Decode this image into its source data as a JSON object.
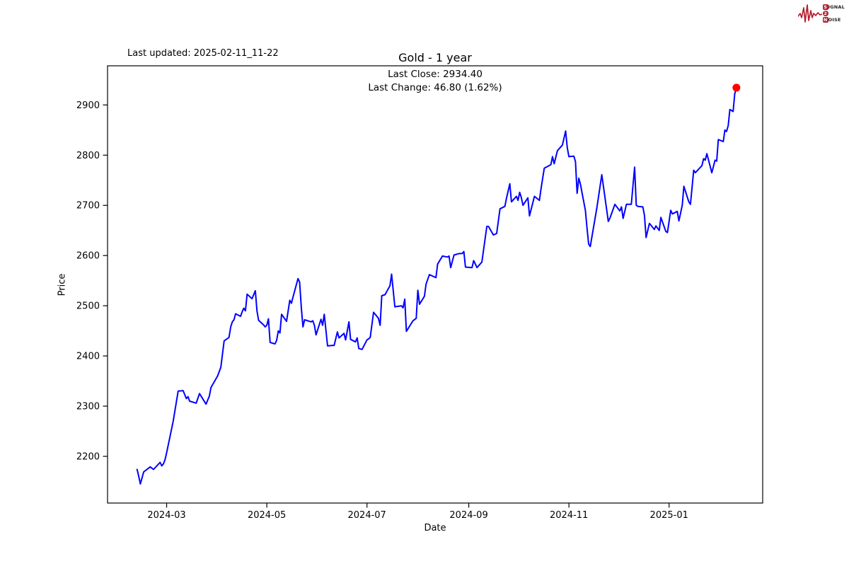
{
  "header": {
    "last_updated": "Last updated: 2025-02-11_11-22",
    "logo": {
      "color": "#b41f2e",
      "lines": [
        {
          "initial": "S",
          "rest": "IGNAL"
        },
        {
          "initial": "2",
          "rest": ""
        },
        {
          "initial": "N",
          "rest": "OISE"
        }
      ]
    }
  },
  "chart_data": {
    "type": "line",
    "title": "Gold - 1 year",
    "last_close_label": "Last Close: 2934.40",
    "last_change_label": "Last Change: 46.80 (1.62%)",
    "last_close": 2934.4,
    "last_change": 46.8,
    "last_change_pct": "1.62%",
    "xlabel": "Date",
    "ylabel": "Price",
    "line_color": "#0000ff",
    "marker_color": "#ff0000",
    "frame_color": "#000000",
    "grid": false,
    "ylim": [
      2107,
      2978
    ],
    "xlim": [
      "2024-01-25",
      "2025-02-27"
    ],
    "yticks": [
      2200,
      2300,
      2400,
      2500,
      2600,
      2700,
      2800,
      2900
    ],
    "xticks": [
      "2024-03",
      "2024-05",
      "2024-07",
      "2024-09",
      "2024-11",
      "2025-01"
    ],
    "series": [
      {
        "name": "Gold",
        "points": [
          [
            "2024-02-12",
            2174
          ],
          [
            "2024-02-13",
            2160
          ],
          [
            "2024-02-14",
            2145
          ],
          [
            "2024-02-16",
            2169
          ],
          [
            "2024-02-20",
            2179
          ],
          [
            "2024-02-22",
            2174
          ],
          [
            "2024-02-26",
            2188
          ],
          [
            "2024-02-27",
            2181
          ],
          [
            "2024-02-28",
            2185
          ],
          [
            "2024-02-29",
            2193
          ],
          [
            "2024-03-01",
            2207
          ],
          [
            "2024-03-05",
            2270
          ],
          [
            "2024-03-08",
            2330
          ],
          [
            "2024-03-11",
            2331
          ],
          [
            "2024-03-13",
            2315
          ],
          [
            "2024-03-14",
            2319
          ],
          [
            "2024-03-15",
            2310
          ],
          [
            "2024-03-19",
            2306
          ],
          [
            "2024-03-21",
            2325
          ],
          [
            "2024-03-25",
            2304
          ],
          [
            "2024-03-27",
            2320
          ],
          [
            "2024-03-28",
            2337
          ],
          [
            "2024-04-01",
            2360
          ],
          [
            "2024-04-03",
            2377
          ],
          [
            "2024-04-05",
            2430
          ],
          [
            "2024-04-08",
            2437
          ],
          [
            "2024-04-09",
            2458
          ],
          [
            "2024-04-10",
            2468
          ],
          [
            "2024-04-11",
            2472
          ],
          [
            "2024-04-12",
            2484
          ],
          [
            "2024-04-15",
            2479
          ],
          [
            "2024-04-16",
            2488
          ],
          [
            "2024-04-17",
            2495
          ],
          [
            "2024-04-18",
            2490
          ],
          [
            "2024-04-19",
            2523
          ],
          [
            "2024-04-22",
            2514
          ],
          [
            "2024-04-24",
            2530
          ],
          [
            "2024-04-25",
            2490
          ],
          [
            "2024-04-26",
            2471
          ],
          [
            "2024-04-29",
            2462
          ],
          [
            "2024-04-30",
            2458
          ],
          [
            "2024-05-01",
            2461
          ],
          [
            "2024-05-02",
            2474
          ],
          [
            "2024-05-03",
            2427
          ],
          [
            "2024-05-06",
            2424
          ],
          [
            "2024-05-07",
            2431
          ],
          [
            "2024-05-08",
            2450
          ],
          [
            "2024-05-09",
            2446
          ],
          [
            "2024-05-10",
            2483
          ],
          [
            "2024-05-13",
            2469
          ],
          [
            "2024-05-14",
            2490
          ],
          [
            "2024-05-15",
            2511
          ],
          [
            "2024-05-16",
            2505
          ],
          [
            "2024-05-17",
            2518
          ],
          [
            "2024-05-20",
            2554
          ],
          [
            "2024-05-21",
            2547
          ],
          [
            "2024-05-22",
            2496
          ],
          [
            "2024-05-23",
            2458
          ],
          [
            "2024-05-24",
            2472
          ],
          [
            "2024-05-28",
            2468
          ],
          [
            "2024-05-29",
            2470
          ],
          [
            "2024-05-30",
            2461
          ],
          [
            "2024-05-31",
            2442
          ],
          [
            "2024-06-03",
            2473
          ],
          [
            "2024-06-04",
            2461
          ],
          [
            "2024-06-05",
            2483
          ],
          [
            "2024-06-07",
            2420
          ],
          [
            "2024-06-10",
            2421
          ],
          [
            "2024-06-11",
            2421
          ],
          [
            "2024-06-13",
            2448
          ],
          [
            "2024-06-14",
            2436
          ],
          [
            "2024-06-17",
            2445
          ],
          [
            "2024-06-18",
            2432
          ],
          [
            "2024-06-20",
            2468
          ],
          [
            "2024-06-21",
            2433
          ],
          [
            "2024-06-24",
            2428
          ],
          [
            "2024-06-25",
            2436
          ],
          [
            "2024-06-26",
            2415
          ],
          [
            "2024-06-28",
            2413
          ],
          [
            "2024-07-01",
            2432
          ],
          [
            "2024-07-02",
            2434
          ],
          [
            "2024-07-03",
            2437
          ],
          [
            "2024-07-05",
            2487
          ],
          [
            "2024-07-08",
            2475
          ],
          [
            "2024-07-09",
            2461
          ],
          [
            "2024-07-10",
            2520
          ],
          [
            "2024-07-12",
            2522
          ],
          [
            "2024-07-15",
            2540
          ],
          [
            "2024-07-16",
            2563
          ],
          [
            "2024-07-18",
            2498
          ],
          [
            "2024-07-22",
            2500
          ],
          [
            "2024-07-23",
            2496
          ],
          [
            "2024-07-24",
            2513
          ],
          [
            "2024-07-25",
            2449
          ],
          [
            "2024-07-29",
            2470
          ],
          [
            "2024-07-31",
            2475
          ],
          [
            "2024-08-01",
            2531
          ],
          [
            "2024-08-02",
            2503
          ],
          [
            "2024-08-05",
            2519
          ],
          [
            "2024-08-06",
            2543
          ],
          [
            "2024-08-08",
            2562
          ],
          [
            "2024-08-12",
            2556
          ],
          [
            "2024-08-13",
            2583
          ],
          [
            "2024-08-16",
            2599
          ],
          [
            "2024-08-19",
            2597
          ],
          [
            "2024-08-20",
            2599
          ],
          [
            "2024-08-21",
            2576
          ],
          [
            "2024-08-23",
            2601
          ],
          [
            "2024-08-26",
            2604
          ],
          [
            "2024-08-28",
            2604
          ],
          [
            "2024-08-29",
            2608
          ],
          [
            "2024-08-30",
            2577
          ],
          [
            "2024-09-03",
            2576
          ],
          [
            "2024-09-04",
            2590
          ],
          [
            "2024-09-06",
            2576
          ],
          [
            "2024-09-09",
            2587
          ],
          [
            "2024-09-12",
            2658
          ],
          [
            "2024-09-13",
            2658
          ],
          [
            "2024-09-16",
            2641
          ],
          [
            "2024-09-18",
            2644
          ],
          [
            "2024-09-20",
            2693
          ],
          [
            "2024-09-23",
            2698
          ],
          [
            "2024-09-24",
            2715
          ],
          [
            "2024-09-26",
            2743
          ],
          [
            "2024-09-27",
            2707
          ],
          [
            "2024-09-30",
            2718
          ],
          [
            "2024-10-01",
            2710
          ],
          [
            "2024-10-02",
            2726
          ],
          [
            "2024-10-03",
            2716
          ],
          [
            "2024-10-04",
            2700
          ],
          [
            "2024-10-07",
            2715
          ],
          [
            "2024-10-08",
            2679
          ],
          [
            "2024-10-11",
            2718
          ],
          [
            "2024-10-14",
            2710
          ],
          [
            "2024-10-15",
            2733
          ],
          [
            "2024-10-17",
            2774
          ],
          [
            "2024-10-21",
            2781
          ],
          [
            "2024-10-22",
            2797
          ],
          [
            "2024-10-23",
            2783
          ],
          [
            "2024-10-25",
            2809
          ],
          [
            "2024-10-28",
            2820
          ],
          [
            "2024-10-30",
            2848
          ],
          [
            "2024-10-31",
            2815
          ],
          [
            "2024-11-01",
            2797
          ],
          [
            "2024-11-04",
            2798
          ],
          [
            "2024-11-05",
            2787
          ],
          [
            "2024-11-06",
            2724
          ],
          [
            "2024-11-07",
            2754
          ],
          [
            "2024-11-08",
            2742
          ],
          [
            "2024-11-11",
            2690
          ],
          [
            "2024-11-12",
            2655
          ],
          [
            "2024-11-13",
            2623
          ],
          [
            "2024-11-14",
            2618
          ],
          [
            "2024-11-18",
            2695
          ],
          [
            "2024-11-21",
            2761
          ],
          [
            "2024-11-25",
            2668
          ],
          [
            "2024-11-26",
            2675
          ],
          [
            "2024-11-29",
            2702
          ],
          [
            "2024-12-02",
            2689
          ],
          [
            "2024-12-03",
            2697
          ],
          [
            "2024-12-04",
            2674
          ],
          [
            "2024-12-06",
            2702
          ],
          [
            "2024-12-09",
            2702
          ],
          [
            "2024-12-11",
            2776
          ],
          [
            "2024-12-12",
            2700
          ],
          [
            "2024-12-13",
            2698
          ],
          [
            "2024-12-16",
            2697
          ],
          [
            "2024-12-17",
            2680
          ],
          [
            "2024-12-18",
            2636
          ],
          [
            "2024-12-20",
            2664
          ],
          [
            "2024-12-23",
            2652
          ],
          [
            "2024-12-24",
            2659
          ],
          [
            "2024-12-26",
            2650
          ],
          [
            "2024-12-27",
            2676
          ],
          [
            "2024-12-30",
            2648
          ],
          [
            "2024-12-31",
            2646
          ],
          [
            "2025-01-02",
            2690
          ],
          [
            "2025-01-03",
            2683
          ],
          [
            "2025-01-06",
            2688
          ],
          [
            "2025-01-07",
            2669
          ],
          [
            "2025-01-09",
            2700
          ],
          [
            "2025-01-10",
            2738
          ],
          [
            "2025-01-13",
            2707
          ],
          [
            "2025-01-14",
            2702
          ],
          [
            "2025-01-16",
            2770
          ],
          [
            "2025-01-17",
            2765
          ],
          [
            "2025-01-21",
            2779
          ],
          [
            "2025-01-22",
            2793
          ],
          [
            "2025-01-23",
            2790
          ],
          [
            "2025-01-24",
            2803
          ],
          [
            "2025-01-27",
            2765
          ],
          [
            "2025-01-29",
            2790
          ],
          [
            "2025-01-30",
            2788
          ],
          [
            "2025-01-31",
            2831
          ],
          [
            "2025-02-03",
            2827
          ],
          [
            "2025-02-04",
            2850
          ],
          [
            "2025-02-05",
            2847
          ],
          [
            "2025-02-06",
            2859
          ],
          [
            "2025-02-07",
            2891
          ],
          [
            "2025-02-09",
            2887
          ],
          [
            "2025-02-10",
            2922
          ],
          [
            "2025-02-11",
            2934.4
          ]
        ]
      }
    ],
    "last_point": [
      "2025-02-11",
      2934.4
    ]
  }
}
